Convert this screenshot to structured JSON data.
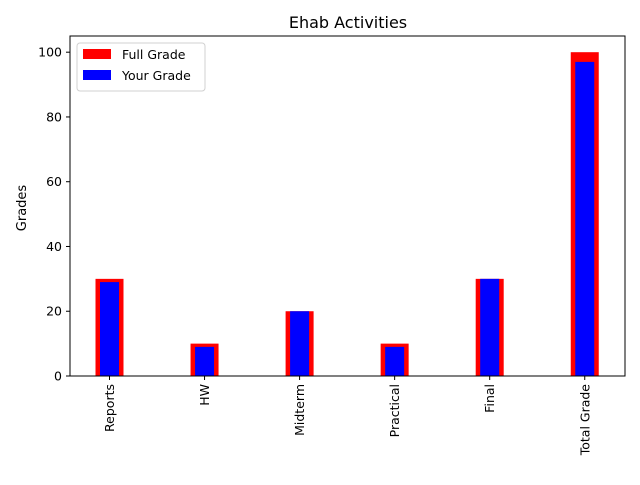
{
  "chart_data": {
    "type": "bar",
    "title": "Ehab  Activities",
    "xlabel": "",
    "ylabel": "Grades",
    "categories": [
      "Reports",
      "HW",
      "Midterm",
      "Practical",
      "Final",
      "Total Grade"
    ],
    "series": [
      {
        "name": "Full Grade",
        "color": "#ff0000",
        "values": [
          30,
          10,
          20,
          10,
          30,
          100
        ]
      },
      {
        "name": "Your Grade",
        "color": "#0000ff",
        "values": [
          29,
          9,
          20,
          9,
          30,
          97
        ]
      }
    ],
    "ylim": [
      0,
      105
    ],
    "yticks": [
      0,
      20,
      40,
      60,
      80,
      100
    ],
    "legend_position": "top-left",
    "grid": false
  }
}
